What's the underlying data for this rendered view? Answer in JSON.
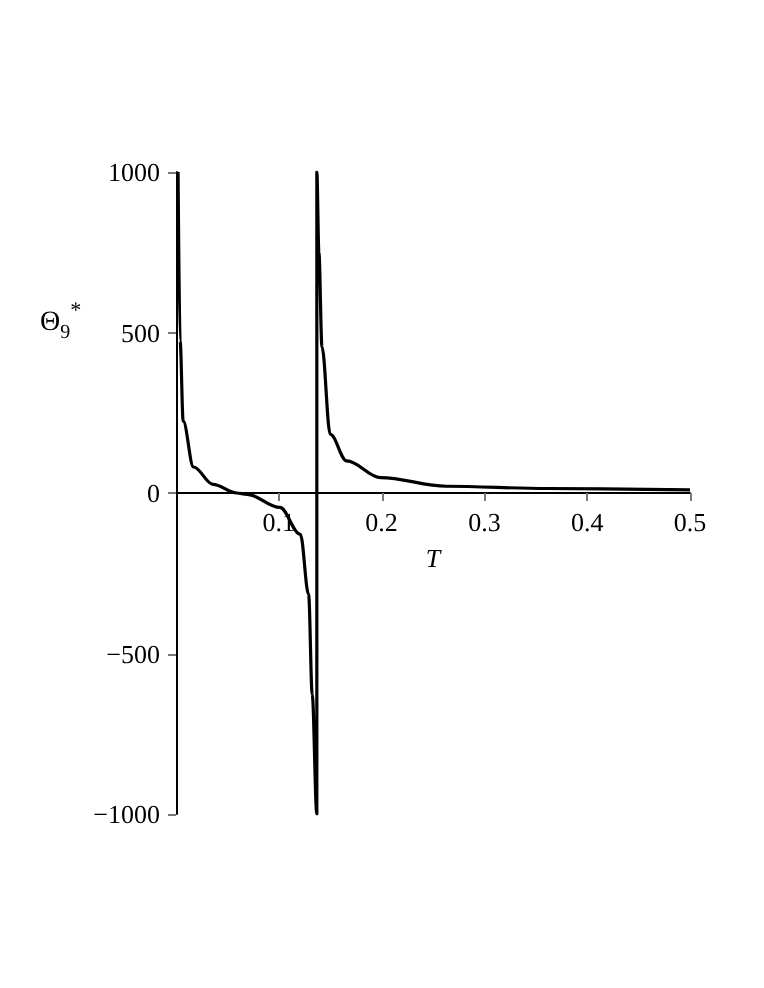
{
  "chart_data": {
    "type": "line",
    "xlabel": "T",
    "ylabel": "Θ$_{9}$$^{*}$",
    "series": [
      {
        "color": "#000000",
        "x": [
          0.002,
          0.004,
          0.007,
          0.017,
          0.036,
          0.059,
          0.069,
          0.101,
          0.121,
          0.129,
          0.1325,
          0.137,
          0.137,
          0.139,
          0.142,
          0.15,
          0.166,
          0.199,
          0.263,
          0.361,
          0.5
        ],
        "values": [
          1000,
          474,
          224,
          81,
          27,
          0,
          -4,
          -45,
          -129,
          -316,
          -627,
          -1000,
          1000,
          750,
          455,
          183,
          100,
          48,
          21,
          14,
          10
        ]
      }
    ],
    "xlim": [
      0,
      0.5
    ],
    "xticks": [
      0.1,
      0.2,
      0.3,
      0.4,
      0.5
    ],
    "ylim": [
      -1000,
      1000
    ],
    "yticks": [
      -1000,
      -500,
      0,
      500,
      1000
    ],
    "marker": "none",
    "line_style": "solid"
  }
}
